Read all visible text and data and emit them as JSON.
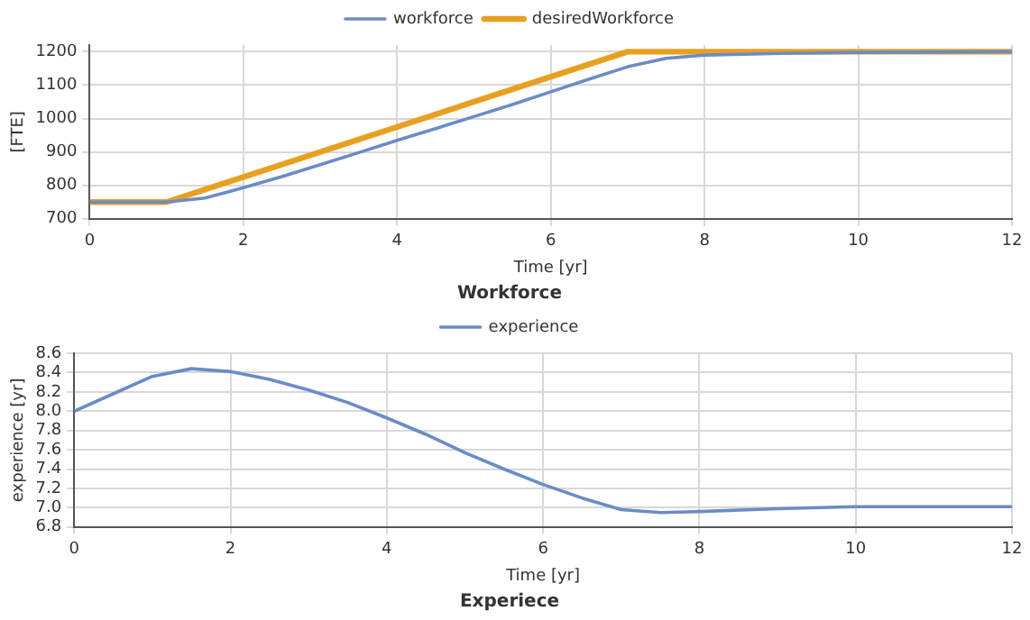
{
  "chart_data": [
    {
      "type": "line",
      "title": "Workforce",
      "xlabel": "Time [yr]",
      "ylabel": "[FTE]",
      "xlim": [
        0,
        12
      ],
      "xticks": [
        0,
        2,
        4,
        6,
        8,
        10,
        12
      ],
      "ylim": [
        700,
        1220
      ],
      "yticks": [
        700,
        800,
        900,
        1000,
        1100,
        1200
      ],
      "grid": true,
      "legend": "top",
      "marker": "none",
      "line_style": "solid",
      "series": [
        {
          "name": "workforce",
          "color": "#6a8cc7",
          "x": [
            0,
            1,
            1.5,
            2,
            2.5,
            3,
            3.5,
            4,
            4.5,
            5,
            5.5,
            6,
            6.5,
            7,
            7.5,
            8,
            9,
            10,
            12
          ],
          "values": [
            750,
            750,
            762,
            793,
            826,
            862,
            898,
            935,
            970,
            1006,
            1042,
            1080,
            1118,
            1155,
            1180,
            1190,
            1195,
            1198,
            1200
          ]
        },
        {
          "name": "desiredWorkforce",
          "color": "#e8a020",
          "x": [
            0,
            1,
            7,
            12
          ],
          "values": [
            750,
            750,
            1200,
            1200
          ]
        }
      ]
    },
    {
      "type": "line",
      "title": "Experiece",
      "xlabel": "Time [yr]",
      "ylabel": "experience [yr]",
      "xlim": [
        0,
        12
      ],
      "xticks": [
        0,
        2,
        4,
        6,
        8,
        10,
        12
      ],
      "ylim": [
        6.8,
        8.6
      ],
      "yticks": [
        {
          "value": 6.8,
          "label": "6.8"
        },
        {
          "value": 7,
          "label": "7.0"
        },
        {
          "value": 7.2,
          "label": "7.2"
        },
        {
          "value": 7.4,
          "label": "7.4"
        },
        {
          "value": 7.6,
          "label": "7.6"
        },
        {
          "value": 7.8,
          "label": "7.8"
        },
        {
          "value": 8,
          "label": "8.0"
        },
        {
          "value": 8.2,
          "label": "8.2"
        },
        {
          "value": 8.4,
          "label": "8.4"
        },
        {
          "value": 8.6,
          "label": "8.6"
        }
      ],
      "grid": true,
      "legend": "top",
      "marker": "none",
      "line_style": "solid",
      "series": [
        {
          "name": "experience",
          "color": "#6a8cc7",
          "x": [
            0,
            0.5,
            1,
            1.5,
            2,
            2.5,
            3,
            3.5,
            4,
            4.5,
            5,
            5.5,
            6,
            6.5,
            7,
            7.5,
            8,
            9,
            10,
            11,
            12
          ],
          "values": [
            8.0,
            8.18,
            8.36,
            8.44,
            8.41,
            8.33,
            8.22,
            8.09,
            7.93,
            7.76,
            7.57,
            7.4,
            7.24,
            7.1,
            6.98,
            6.95,
            6.96,
            6.99,
            7.01,
            7.01,
            7.01
          ]
        }
      ]
    }
  ]
}
